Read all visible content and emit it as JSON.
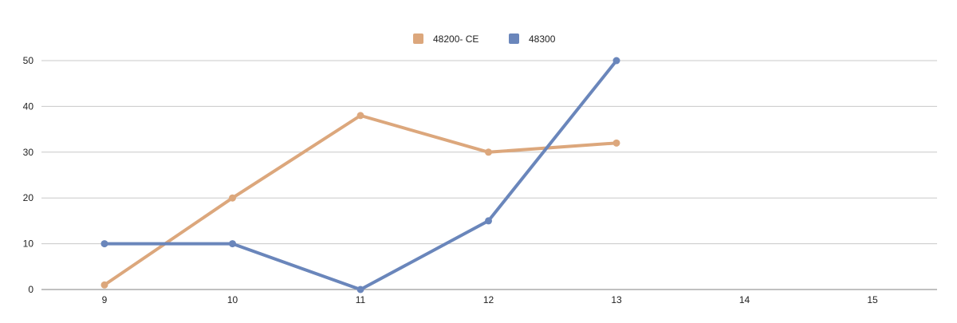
{
  "chart_data": {
    "type": "line",
    "title": "",
    "xlabel": "",
    "ylabel": "",
    "x": [
      9,
      10,
      11,
      12,
      13,
      14,
      15
    ],
    "xlim": [
      9,
      15
    ],
    "ylim": [
      0,
      50
    ],
    "yticks": [
      0,
      10,
      20,
      30,
      40,
      50
    ],
    "grid": true,
    "legend_position": "top-center",
    "series": [
      {
        "name": "48200- CE",
        "color": "#dca77c",
        "values": [
          1,
          20,
          38,
          30,
          32,
          null,
          null
        ]
      },
      {
        "name": "48300",
        "color": "#6a86bb",
        "values": [
          10,
          10,
          0,
          15,
          50,
          null,
          null
        ]
      }
    ]
  }
}
